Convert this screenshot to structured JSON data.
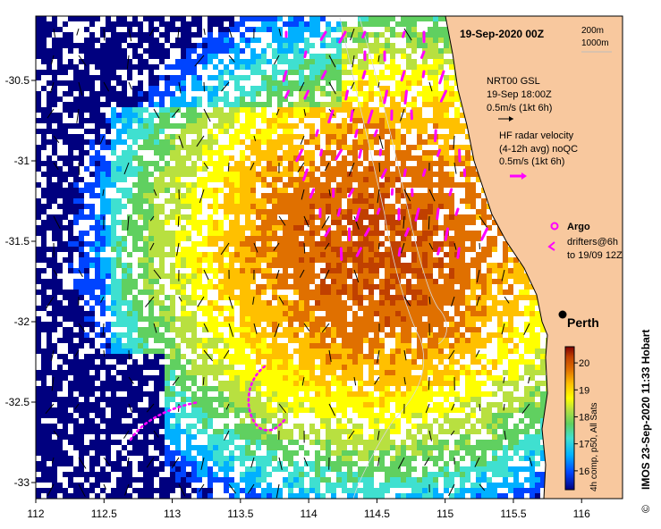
{
  "map": {
    "date_title": "19-Sep-2020 00Z",
    "bathy_labels": [
      "200m",
      "1000m"
    ],
    "model": {
      "name": "NRT00 GSL",
      "time": "19-Sep 18:00Z",
      "scale": "0.5m/s (1kt 6h)"
    },
    "hf_radar": {
      "title": "HF radar velocity",
      "avg": "(4-12h avg) noQC",
      "scale": "0.5m/s (1kt 6h)"
    },
    "argo_label": "Argo",
    "drifters_label_1": "drifters@6h",
    "drifters_label_2": "to 19/09 12Z",
    "city": "Perth",
    "credit": "IMOS 23-Sep-2020 11:33 Hobart",
    "copyright_symbol": "©",
    "colorbar": {
      "label": "4h comp, p50, All Sats",
      "ticks": [
        "20",
        "19",
        "18",
        "17",
        "16"
      ],
      "min": 15.3,
      "max": 20.6
    },
    "x_axis": {
      "ticks": [
        "112",
        "112.5",
        "113",
        "113.5",
        "114",
        "114.5",
        "115",
        "115.5",
        "116"
      ],
      "range": [
        112,
        116.3
      ]
    },
    "y_axis": {
      "ticks": [
        "-30.5",
        "-31",
        "-31.5",
        "-32",
        "-32.5",
        "-33"
      ],
      "range": [
        -33.1,
        -30.1
      ]
    },
    "colors": {
      "land": "#f8c89e",
      "cloud": "#ffffff",
      "radar_vectors": "#ff00ff",
      "model_vectors": "#000000"
    }
  }
}
